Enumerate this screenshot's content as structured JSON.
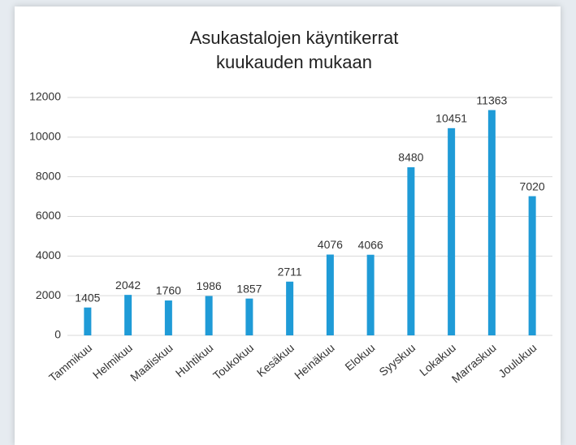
{
  "chart_data": {
    "type": "bar",
    "title": [
      "Asukastalojen käyntikerrat",
      "kuukauden mukaan"
    ],
    "categories": [
      "Tammikuu",
      "Helmikuu",
      "Maaliskuu",
      "Huhtikuu",
      "Toukokuu",
      "Kesäkuu",
      "Heinäkuu",
      "Elokuu",
      "Syyskuu",
      "Lokakuu",
      "Marraskuu",
      "Joulukuu"
    ],
    "values": [
      1405,
      2042,
      1760,
      1986,
      1857,
      2711,
      4076,
      4066,
      8480,
      10451,
      11363,
      7020
    ],
    "color": "#1f9bd7",
    "ylim": [
      0,
      12000
    ],
    "yticks": [
      0,
      2000,
      4000,
      6000,
      8000,
      10000,
      12000
    ],
    "grid": true
  }
}
